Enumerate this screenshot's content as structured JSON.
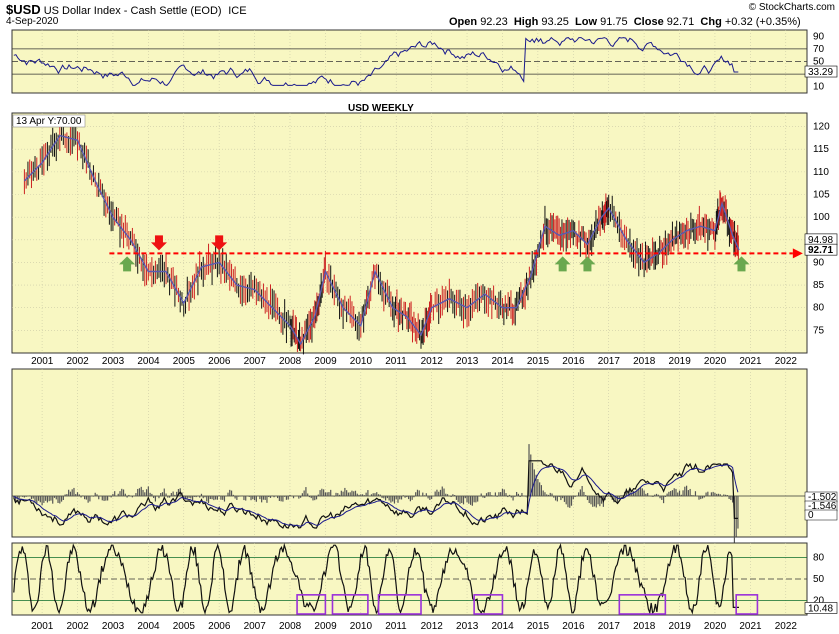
{
  "header": {
    "symbol": "$USD",
    "description": "US Dollar Index - Cash Settle (EOD)",
    "exchange": "ICE",
    "date": "4-Sep-2020",
    "brand": "© StockCharts.com",
    "open_label": "Open",
    "open": "92.23",
    "high_label": "High",
    "high": "93.25",
    "low_label": "Low",
    "low": "91.75",
    "close_label": "Close",
    "close": "92.71",
    "chg_label": "Chg",
    "chg": "+0.32 (+0.35%)"
  },
  "annotation": {
    "title": "USD WEEKLY",
    "tooltip": "13 Apr Y:70.00"
  },
  "colors": {
    "panel_bg": "#f8f7c2",
    "price_line": "#5a5ab0",
    "support_line": "#ff0000",
    "up_arrow": "#6aa84f",
    "down_arrow": "#ee1111",
    "stoch_box": "#9b30d9",
    "title_color": "#b100ff"
  },
  "chart_data": [
    {
      "type": "line",
      "panel": "rsi",
      "y_ticks": [
        10,
        30,
        50,
        70,
        90
      ],
      "ylim": [
        0,
        100
      ],
      "reference_lines": [
        30,
        50,
        70
      ],
      "last_value_label": "33.29"
    },
    {
      "type": "line",
      "panel": "price",
      "y_ticks": [
        75,
        80,
        85,
        90,
        95,
        100,
        105,
        110,
        115,
        120
      ],
      "ylim": [
        70,
        123
      ],
      "x_ticks": [
        "2001",
        "2002",
        "2003",
        "2004",
        "2005",
        "2006",
        "2007",
        "2008",
        "2009",
        "2010",
        "2011",
        "2012",
        "2013",
        "2014",
        "2015",
        "2016",
        "2017",
        "2018",
        "2019",
        "2020",
        "2021",
        "2022"
      ],
      "x": [
        2000.5,
        2001,
        2001.5,
        2002,
        2002.5,
        2003,
        2003.5,
        2004,
        2004.5,
        2005,
        2005.5,
        2006,
        2006.5,
        2007,
        2007.5,
        2008,
        2008.3,
        2008.7,
        2009,
        2009.5,
        2010,
        2010.4,
        2010.9,
        2011.3,
        2011.7,
        2012,
        2012.5,
        2013,
        2013.5,
        2014,
        2014.4,
        2014.8,
        2015.2,
        2015.6,
        2016,
        2016.4,
        2016.8,
        2017,
        2017.5,
        2018,
        2018.4,
        2018.8,
        2019.2,
        2019.6,
        2020,
        2020.2,
        2020.5,
        2020.68
      ],
      "series": [
        {
          "values": [
            108,
            112,
            118,
            117,
            108,
            100,
            95,
            88,
            88,
            81,
            89,
            90,
            85,
            84,
            80,
            76,
            72,
            78,
            88,
            80,
            76,
            88,
            80,
            78,
            74,
            80,
            82,
            80,
            83,
            80,
            80,
            87,
            98,
            96,
            97,
            94,
            100,
            102,
            95,
            90,
            92,
            95,
            97,
            98,
            97,
            103,
            96,
            92.71
          ]
        }
      ],
      "support_level": 92,
      "last_value_labels": [
        "94.98",
        "92.71"
      ],
      "up_arrows_x": [
        2003.4,
        2015.7,
        2016.4,
        2020.75
      ],
      "down_arrows_x": [
        2004.3,
        2006.0
      ]
    },
    {
      "type": "line",
      "panel": "macd",
      "y_ticks": [
        0
      ],
      "last_value_labels": [
        "-1.502",
        "-1.546",
        "0"
      ]
    },
    {
      "type": "line",
      "panel": "stochastic",
      "y_ticks": [
        20,
        50,
        80
      ],
      "ylim": [
        0,
        100
      ],
      "reference_lines": [
        20,
        50,
        80
      ],
      "last_value_label": "10.48",
      "highlight_boxes_x": [
        [
          2008.2,
          2009.0
        ],
        [
          2009.2,
          2010.2
        ],
        [
          2010.5,
          2011.7
        ],
        [
          2013.2,
          2014.0
        ],
        [
          2017.3,
          2018.6
        ],
        [
          2020.6,
          2021.2
        ]
      ]
    }
  ]
}
